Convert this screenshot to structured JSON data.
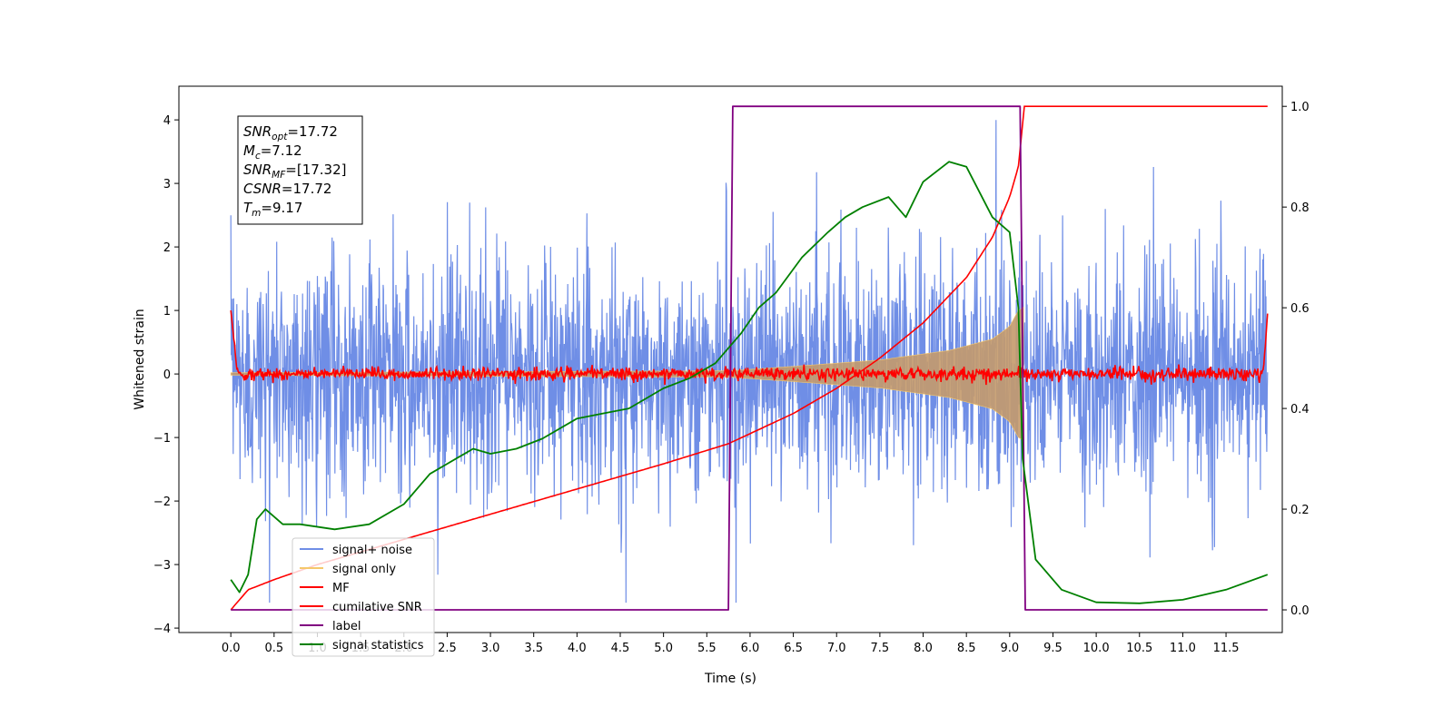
{
  "chart_data": {
    "type": "line",
    "title": "",
    "xlabel": "Time (s)",
    "ylabel": "Whitened strain",
    "xlim": [
      -0.6,
      12.15
    ],
    "ylim": [
      -4.07,
      4.53
    ],
    "y2lim": [
      -0.045,
      1.04
    ],
    "x_ticks": [
      "0.0",
      "0.5",
      "1.0",
      "1.5",
      "2.0",
      "2.5",
      "3.0",
      "3.5",
      "4.0",
      "4.5",
      "5.0",
      "5.5",
      "6.0",
      "6.5",
      "7.0",
      "7.5",
      "8.0",
      "8.5",
      "9.0",
      "9.5",
      "10.0",
      "10.5",
      "11.0",
      "11.5"
    ],
    "y_ticks": [
      "4",
      "3",
      "2",
      "1",
      "0",
      "−1",
      "−2",
      "−3",
      "−4"
    ],
    "y2_ticks": [
      "1.0",
      "0.8",
      "0.6",
      "0.4",
      "0.2",
      "0.0"
    ],
    "grid": false,
    "legend_position": "lower-left",
    "colors": {
      "signal_noise": "#6f8ee6",
      "signal_only": "#f5c86b",
      "mf": "#ff0000",
      "cumulative_snr": "#ff0000",
      "label": "#800080",
      "signal_statistics": "#008000"
    },
    "series": [
      {
        "name": "signal+ noise",
        "axis": "left",
        "envelope_start": 2.3,
        "envelope_end": 3.3
      },
      {
        "name": "signal only",
        "axis": "left",
        "x": [
          0.0,
          5.75,
          6.5,
          7.5,
          8.3,
          8.8,
          9.0,
          9.1,
          9.16
        ],
        "amplitude": [
          0.02,
          0.05,
          0.12,
          0.22,
          0.37,
          0.55,
          0.75,
          1.0,
          1.05
        ]
      },
      {
        "name": "MF",
        "axis": "left",
        "level": 0.0,
        "noise": 0.05,
        "x_start": 0.0,
        "x_end": 11.98,
        "start_value": 1.0,
        "end_value": 0.95
      },
      {
        "name": "cumilative SNR",
        "axis": "right",
        "x": [
          0.0,
          0.2,
          0.5,
          1.0,
          2.0,
          3.0,
          4.0,
          5.0,
          5.75,
          6.5,
          7.0,
          7.5,
          8.0,
          8.5,
          8.8,
          9.0,
          9.1,
          9.17,
          11.98
        ],
        "y": [
          0.0,
          0.04,
          0.06,
          0.09,
          0.14,
          0.19,
          0.24,
          0.29,
          0.33,
          0.39,
          0.44,
          0.5,
          0.57,
          0.66,
          0.74,
          0.82,
          0.88,
          1.0,
          1.0
        ]
      },
      {
        "name": "label",
        "axis": "right",
        "x": [
          0.0,
          5.75,
          5.8,
          9.12,
          9.18,
          11.98
        ],
        "y": [
          0.0,
          0.0,
          1.0,
          1.0,
          0.0,
          0.0
        ]
      },
      {
        "name": "signal statistics",
        "axis": "right",
        "x": [
          0.0,
          0.1,
          0.2,
          0.3,
          0.4,
          0.6,
          0.8,
          1.2,
          1.6,
          2.0,
          2.3,
          2.5,
          2.8,
          3.0,
          3.3,
          3.6,
          4.0,
          4.3,
          4.6,
          5.0,
          5.3,
          5.6,
          5.9,
          6.1,
          6.3,
          6.6,
          6.9,
          7.1,
          7.3,
          7.6,
          7.8,
          8.0,
          8.3,
          8.5,
          8.8,
          9.0,
          9.1,
          9.15,
          9.3,
          9.6,
          10.0,
          10.5,
          11.0,
          11.5,
          11.98
        ],
        "y": [
          0.06,
          0.035,
          0.07,
          0.18,
          0.2,
          0.17,
          0.17,
          0.16,
          0.17,
          0.21,
          0.27,
          0.29,
          0.32,
          0.31,
          0.32,
          0.34,
          0.38,
          0.39,
          0.4,
          0.44,
          0.46,
          0.49,
          0.55,
          0.6,
          0.63,
          0.7,
          0.75,
          0.78,
          0.8,
          0.82,
          0.78,
          0.85,
          0.89,
          0.88,
          0.78,
          0.75,
          0.6,
          0.3,
          0.1,
          0.04,
          0.015,
          0.013,
          0.02,
          0.04,
          0.07
        ]
      }
    ],
    "annotation": [
      {
        "name": "SNR",
        "sub": "opt",
        "value": "=17.72"
      },
      {
        "name": "M",
        "sub": "c",
        "value": "=7.12"
      },
      {
        "name": "SNR",
        "sub": "MF",
        "value": "=[17.32]"
      },
      {
        "name": "CSNR",
        "sub": "",
        "value": "=17.72"
      },
      {
        "name": "T",
        "sub": "m",
        "value": "=9.17"
      }
    ]
  }
}
